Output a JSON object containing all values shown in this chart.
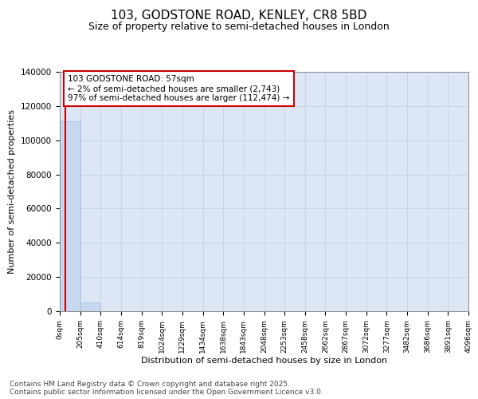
{
  "title1": "103, GODSTONE ROAD, KENLEY, CR8 5BD",
  "title2": "Size of property relative to semi-detached houses in London",
  "xlabel": "Distribution of semi-detached houses by size in London",
  "ylabel": "Number of semi-detached properties",
  "annotation_title": "103 GODSTONE ROAD: 57sqm",
  "annotation_line1": "← 2% of semi-detached houses are smaller (2,743)",
  "annotation_line2": "97% of semi-detached houses are larger (112,474) →",
  "footer1": "Contains HM Land Registry data © Crown copyright and database right 2025.",
  "footer2": "Contains public sector information licensed under the Open Government Licence v3.0.",
  "property_size": 57,
  "bin_edges": [
    0,
    205,
    410,
    614,
    819,
    1024,
    1229,
    1434,
    1638,
    1843,
    2048,
    2253,
    2458,
    2662,
    2867,
    3072,
    3277,
    3482,
    3686,
    3891,
    4096
  ],
  "bar_heights": [
    111000,
    5200,
    180,
    40,
    15,
    7,
    4,
    2,
    1,
    1,
    0,
    0,
    0,
    0,
    0,
    0,
    0,
    0,
    0,
    0
  ],
  "bar_color": "#c5d8f0",
  "bar_edge_color": "#a0b8d8",
  "line_color": "#cc0000",
  "grid_color": "#c8d4e8",
  "bg_color": "#dce6f5",
  "annotation_bg": "#ffffff",
  "annotation_edge": "#cc0000",
  "ylim": [
    0,
    140000
  ],
  "yticks": [
    0,
    20000,
    40000,
    60000,
    80000,
    100000,
    120000,
    140000
  ]
}
